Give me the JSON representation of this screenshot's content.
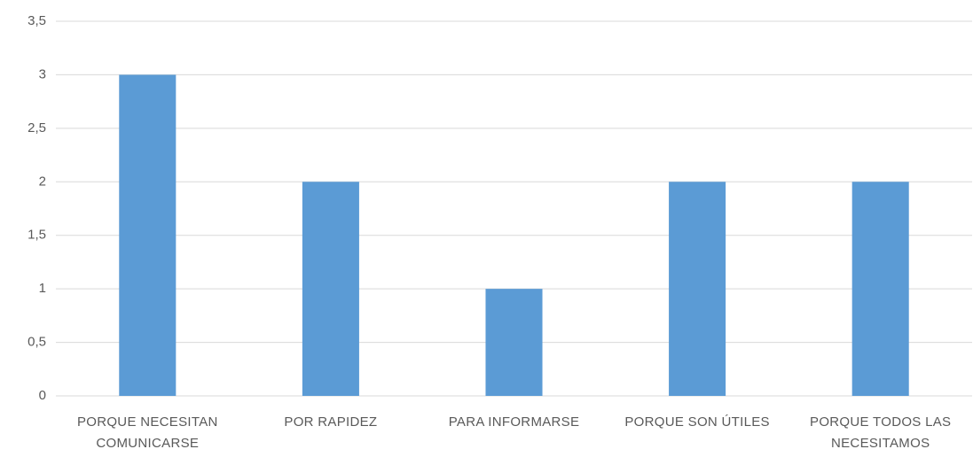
{
  "chart_data": {
    "type": "bar",
    "categories": [
      "PORQUE NECESITAN COMUNICARSE",
      "POR RAPIDEZ",
      "PARA INFORMARSE",
      "PORQUE SON ÚTILES",
      "PORQUE TODOS LAS NECESITAMOS"
    ],
    "values": [
      3,
      2,
      1,
      2,
      2
    ],
    "color": "#5b9bd5",
    "ylim": [
      0,
      3.5
    ],
    "yticks": [
      0,
      {
        "value": 0.5,
        "label": "0,5"
      },
      1,
      {
        "value": 1.5,
        "label": "1,5"
      },
      2,
      {
        "value": 2.5,
        "label": "2,5"
      },
      3,
      {
        "value": 3.5,
        "label": "3,5"
      }
    ],
    "grid": true
  }
}
